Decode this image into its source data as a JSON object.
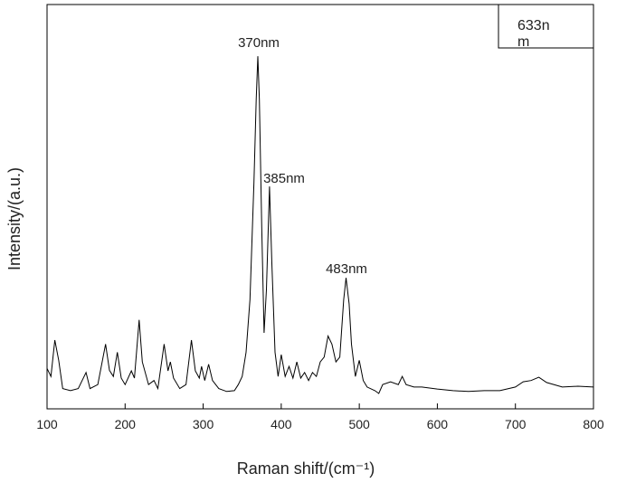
{
  "chart_data": {
    "type": "line",
    "x_label": "Raman shift/(cm⁻¹)",
    "y_label": "Intensity/(a.u.)",
    "x": [
      100,
      105,
      110,
      115,
      120,
      130,
      140,
      150,
      155,
      165,
      175,
      180,
      185,
      190,
      195,
      200,
      208,
      212,
      218,
      222,
      230,
      237,
      242,
      250,
      255,
      258,
      262,
      270,
      278,
      285,
      290,
      295,
      298,
      302,
      307,
      312,
      320,
      330,
      340,
      345,
      350,
      355,
      360,
      365,
      368,
      370,
      372,
      375,
      378,
      381,
      385,
      388,
      392,
      396,
      400,
      405,
      410,
      415,
      420,
      425,
      430,
      435,
      440,
      445,
      450,
      455,
      460,
      465,
      470,
      475,
      480,
      483,
      487,
      490,
      495,
      500,
      505,
      510,
      520,
      525,
      530,
      540,
      550,
      555,
      560,
      570,
      580,
      600,
      620,
      640,
      660,
      680,
      700,
      710,
      720,
      730,
      740,
      760,
      780,
      800
    ],
    "series": [
      {
        "name": "633nm",
        "color": "#000000",
        "values": [
          10,
          8,
          17,
          12,
          5,
          4.5,
          5,
          9,
          5,
          6,
          16,
          9.5,
          8,
          14,
          7.6,
          6,
          9.4,
          7.6,
          22,
          11.6,
          6,
          7,
          5,
          16,
          9.4,
          11.6,
          7.6,
          5,
          6,
          17,
          9.4,
          7.6,
          10.5,
          7,
          11,
          7,
          5,
          4.3,
          4.5,
          6,
          8,
          14,
          27,
          56,
          76.5,
          87.2,
          76.5,
          45,
          18.8,
          29.5,
          55,
          36,
          14,
          8,
          13.4,
          8,
          10.5,
          7.6,
          11.6,
          7.6,
          9,
          7,
          9,
          8,
          11.6,
          12.8,
          18,
          16,
          11.6,
          12.8,
          27,
          32.4,
          26,
          16,
          8,
          12,
          7,
          5.4,
          4.5,
          3.8,
          6,
          6.7,
          6,
          8,
          6,
          5.4,
          5.4,
          4.9,
          4.5,
          4.3,
          4.5,
          4.5,
          5.4,
          6.7,
          7,
          7.8,
          6.5,
          5.4,
          5.6,
          5.4
        ]
      }
    ],
    "annotations": [
      "370nm",
      "385nm",
      "483nm"
    ],
    "xlim": [
      100,
      800
    ],
    "xticks": [
      100,
      200,
      300,
      400,
      500,
      600,
      700,
      800
    ],
    "ylim": [
      0,
      100
    ],
    "legend": "upper right"
  }
}
